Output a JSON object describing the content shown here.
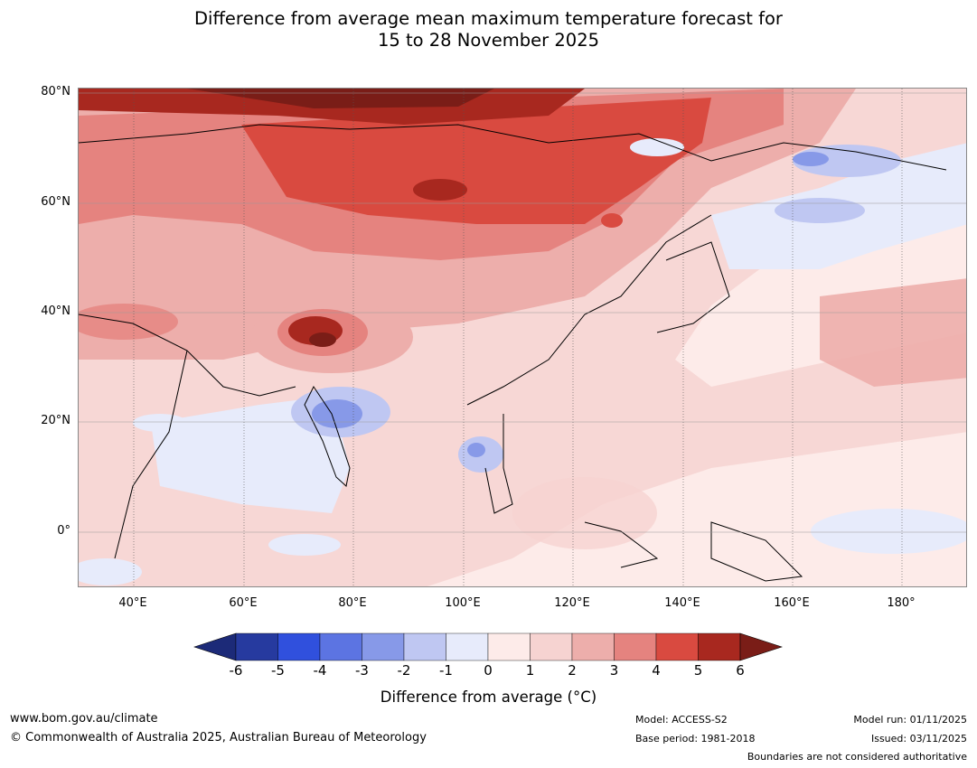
{
  "title_line1": "Difference from average mean maximum temperature forecast for",
  "title_line2": "15 to 28 November 2025",
  "map": {
    "lat_labels": [
      "80°N",
      "60°N",
      "40°N",
      "20°N",
      "0°"
    ],
    "lon_labels": [
      "40°E",
      "60°E",
      "80°E",
      "100°E",
      "120°E",
      "140°E",
      "160°E",
      "180°"
    ]
  },
  "colorbar": {
    "ticks": [
      "-6",
      "-5",
      "-4",
      "-3",
      "-2",
      "-1",
      "0",
      "1",
      "2",
      "3",
      "4",
      "5",
      "6"
    ],
    "colors": [
      "#263a9f",
      "#3050dd",
      "#5c74e2",
      "#8799e8",
      "#bfc7f2",
      "#e7ebfb",
      "#fdebe9",
      "#f6d3d1",
      "#edaeab",
      "#e5837f",
      "#d94a40",
      "#a8281f"
    ],
    "under_color": "#1c2a78",
    "over_color": "#7a1d17",
    "label": "Difference from average (°C)"
  },
  "footer": {
    "url": "www.bom.gov.au/climate",
    "copyright": "© Commonwealth of Australia 2025, Australian Bureau of Meteorology",
    "model": "Model: ACCESS-S2",
    "base_period": "Base period: 1981-2018",
    "model_run": "Model run: 01/11/2025",
    "issued": "Issued: 03/11/2025",
    "disclaimer": "Boundaries are not considered authoritative"
  }
}
